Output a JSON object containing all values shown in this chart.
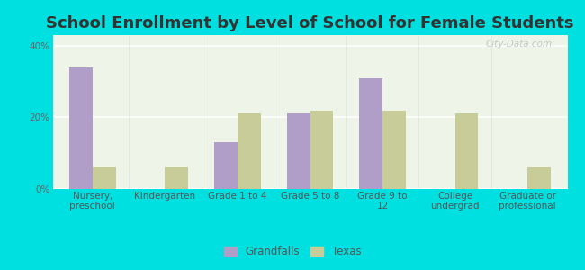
{
  "title": "School Enrollment by Level of School for Female Students",
  "categories": [
    "Nursery,\npreschool",
    "Kindergarten",
    "Grade 1 to 4",
    "Grade 5 to 8",
    "Grade 9 to\n12",
    "College\nundergrad",
    "Graduate or\nprofessional"
  ],
  "grandfalls": [
    34.0,
    0.0,
    13.0,
    21.0,
    31.0,
    0.0,
    0.0
  ],
  "texas": [
    6.0,
    6.0,
    21.0,
    22.0,
    22.0,
    21.0,
    6.0
  ],
  "grandfalls_color": "#b09ec9",
  "texas_color": "#c8cc99",
  "background_color": "#00e0e0",
  "plot_bg_color": "#eef5e8",
  "ylabel_ticks": [
    "0%",
    "20%",
    "40%"
  ],
  "yticks": [
    0,
    20,
    40
  ],
  "ylim": [
    0,
    43
  ],
  "bar_width": 0.32,
  "title_fontsize": 13,
  "tick_fontsize": 7.5,
  "legend_fontsize": 8.5,
  "watermark": "City-Data.com"
}
